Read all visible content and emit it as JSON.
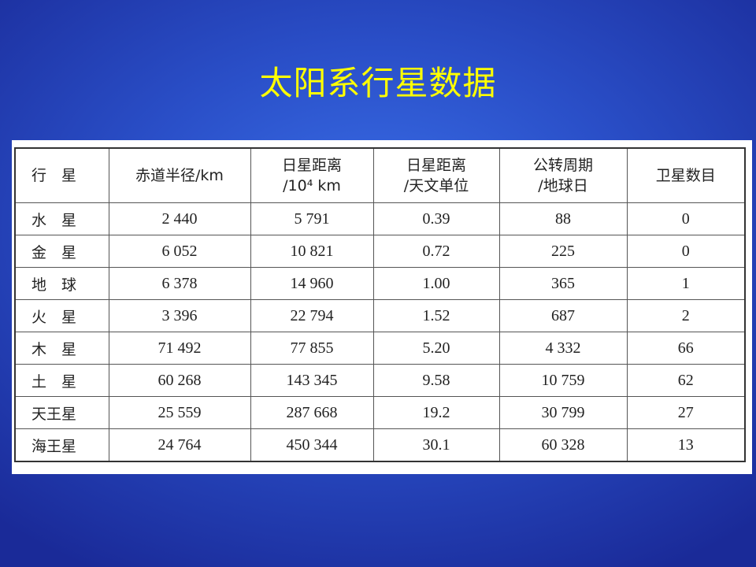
{
  "title": "太阳系行星数据",
  "table": {
    "headers": [
      "行　星",
      "赤道半径/km",
      "日星距离\n/10⁴ km",
      "日星距离\n/天文单位",
      "公转周期\n/地球日",
      "卫星数目"
    ],
    "rows": [
      [
        "水　星",
        "2 440",
        "5 791",
        "0.39",
        "88",
        "0"
      ],
      [
        "金　星",
        "6 052",
        "10 821",
        "0.72",
        "225",
        "0"
      ],
      [
        "地　球",
        "6 378",
        "14 960",
        "1.00",
        "365",
        "1"
      ],
      [
        "火　星",
        "3 396",
        "22 794",
        "1.52",
        "687",
        "2"
      ],
      [
        "木　星",
        "71 492",
        "77 855",
        "5.20",
        "4 332",
        "66"
      ],
      [
        "土　星",
        "60 268",
        "143 345",
        "9.58",
        "10 759",
        "62"
      ],
      [
        "天王星",
        "25 559",
        "287 668",
        "19.2",
        "30 799",
        "27"
      ],
      [
        "海王星",
        "24 764",
        "450 344",
        "30.1",
        "60 328",
        "13"
      ]
    ]
  }
}
